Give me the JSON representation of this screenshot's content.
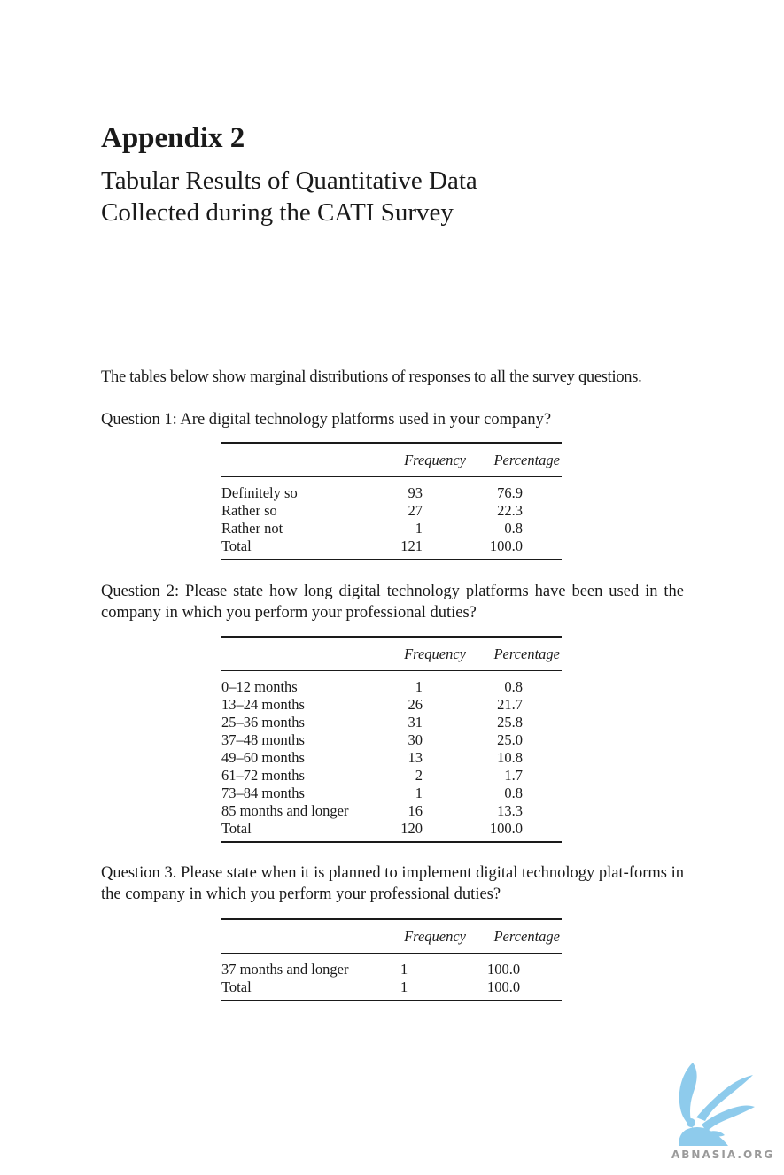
{
  "heading": "Appendix 2",
  "subtitle_lines": [
    "Tabular Results of Quantitative Data",
    "Collected during the CATI Survey"
  ],
  "intro": "The tables below show marginal distributions of responses to all the survey questions.",
  "columns": {
    "frequency": "Frequency",
    "percentage": "Percentage"
  },
  "questions": [
    {
      "text": "Question 1: Are digital technology platforms used in your company?",
      "rows": [
        {
          "label": "Definitely so",
          "frequency": "93",
          "percentage": "76.9"
        },
        {
          "label": "Rather so",
          "frequency": "27",
          "percentage": "22.3"
        },
        {
          "label": "Rather not",
          "frequency": "1",
          "percentage": "0.8"
        },
        {
          "label": "Total",
          "frequency": "121",
          "percentage": "100.0"
        }
      ]
    },
    {
      "text": "Question 2: Please state how long digital technology platforms have been used in the company in which you perform your professional duties?",
      "rows": [
        {
          "label": "0–12 months",
          "frequency": "1",
          "percentage": "0.8"
        },
        {
          "label": "13–24 months",
          "frequency": "26",
          "percentage": "21.7"
        },
        {
          "label": "25–36 months",
          "frequency": "31",
          "percentage": "25.8"
        },
        {
          "label": "37–48 months",
          "frequency": "30",
          "percentage": "25.0"
        },
        {
          "label": "49–60 months",
          "frequency": "13",
          "percentage": "10.8"
        },
        {
          "label": "61–72 months",
          "frequency": "2",
          "percentage": "1.7"
        },
        {
          "label": "73–84 months",
          "frequency": "1",
          "percentage": "0.8"
        },
        {
          "label": "85 months and longer",
          "frequency": "16",
          "percentage": "13.3"
        },
        {
          "label": "Total",
          "frequency": "120",
          "percentage": "100.0"
        }
      ]
    },
    {
      "text": "Question 3. Please state when it is planned to implement digital technology plat-forms in the company in which you perform your professional duties?",
      "rows": [
        {
          "label": "37 months and longer",
          "frequency": "1",
          "percentage": "100.0"
        },
        {
          "label": "Total",
          "frequency": "1",
          "percentage": "100.0"
        }
      ]
    }
  ],
  "watermark": "ABNASIA.ORG",
  "logo": {
    "icon": "griffin-logo-icon",
    "color": "#8ecbec"
  }
}
